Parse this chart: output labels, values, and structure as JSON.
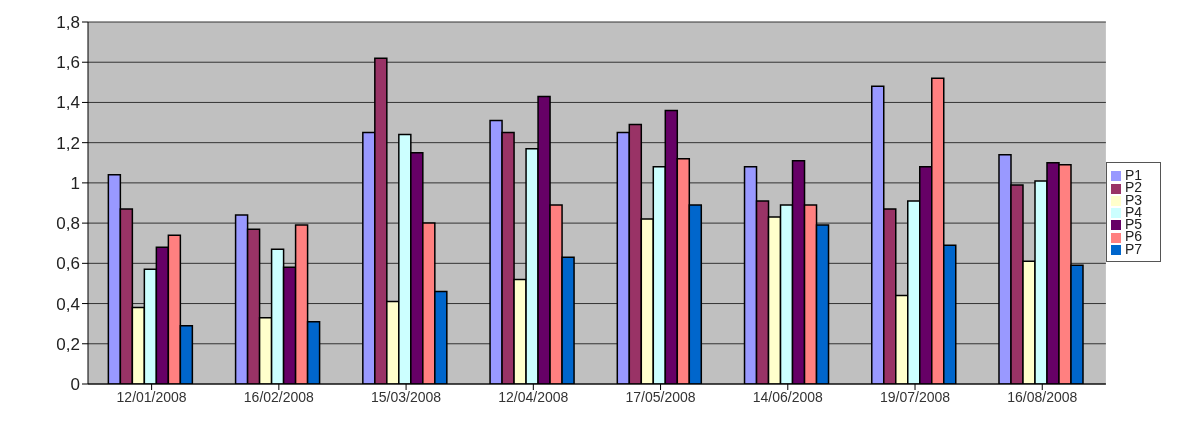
{
  "chart_data": {
    "type": "bar",
    "categories": [
      "12/01/2008",
      "16/02/2008",
      "15/03/2008",
      "12/04/2008",
      "17/05/2008",
      "14/06/2008",
      "19/07/2008",
      "16/08/2008"
    ],
    "series": [
      {
        "name": "P1",
        "color": "#9999ff",
        "values": [
          1.04,
          0.84,
          1.25,
          1.31,
          1.25,
          1.08,
          1.48,
          1.14
        ]
      },
      {
        "name": "P2",
        "color": "#993366",
        "values": [
          0.87,
          0.77,
          1.62,
          1.25,
          1.29,
          0.91,
          0.87,
          0.99
        ]
      },
      {
        "name": "P3",
        "color": "#ffffcc",
        "values": [
          0.38,
          0.33,
          0.41,
          0.52,
          0.82,
          0.83,
          0.44,
          0.61
        ]
      },
      {
        "name": "P4",
        "color": "#ccffff",
        "values": [
          0.57,
          0.67,
          1.24,
          1.17,
          1.08,
          0.89,
          0.91,
          1.01
        ]
      },
      {
        "name": "P5",
        "color": "#660066",
        "values": [
          0.68,
          0.58,
          1.15,
          1.43,
          1.36,
          1.11,
          1.08,
          1.1
        ]
      },
      {
        "name": "P6",
        "color": "#ff8080",
        "values": [
          0.74,
          0.79,
          0.8,
          0.89,
          1.12,
          0.89,
          1.52,
          1.09
        ]
      },
      {
        "name": "P7",
        "color": "#0066cc",
        "values": [
          0.29,
          0.31,
          0.46,
          0.63,
          0.89,
          0.79,
          0.69,
          0.59
        ]
      }
    ],
    "ylim": [
      0,
      1.8
    ],
    "yticks": [
      0,
      {
        "value": 0.2,
        "label": "0,2"
      },
      {
        "value": 0.4,
        "label": "0,4"
      },
      {
        "value": 0.6,
        "label": "0,6"
      },
      {
        "value": 0.8,
        "label": "0,8"
      },
      1,
      {
        "value": 1.2,
        "label": "1,2"
      },
      {
        "value": 1.4,
        "label": "1,4"
      },
      {
        "value": 1.6,
        "label": "1,6"
      },
      {
        "value": 1.8,
        "label": "1,8"
      }
    ],
    "grid": "y",
    "legend": "right"
  }
}
